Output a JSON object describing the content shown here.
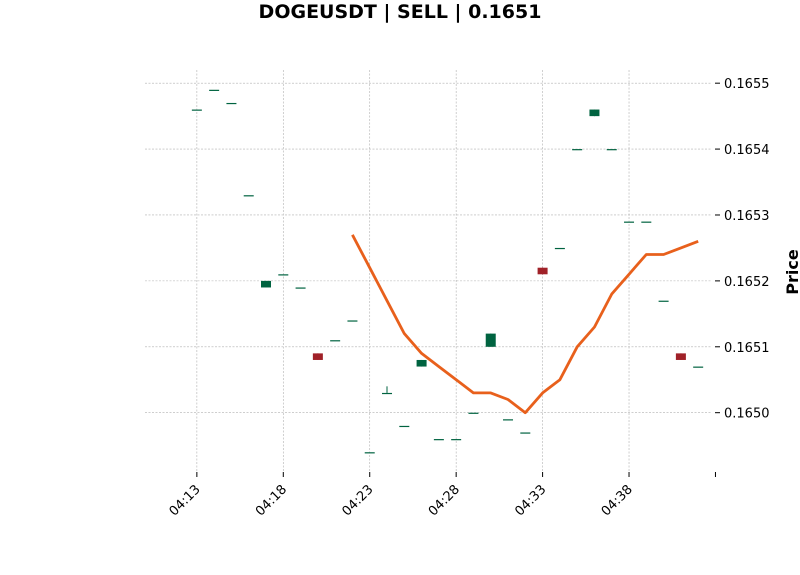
{
  "chart_data": {
    "type": "candlestick",
    "title": "DOGEUSDT | SELL | 0.1651",
    "ylabel": "Price",
    "xlabel": "",
    "ylim": [
      0.16491,
      0.16552
    ],
    "xlim_minutes": [
      10,
      42.8
    ],
    "y_ticks": [
      0.165,
      0.1651,
      0.1652,
      0.1653,
      0.1654,
      0.1655
    ],
    "y_tick_labels": [
      "0.1650",
      "0.1651",
      "0.1652",
      "0.1653",
      "0.1654",
      "0.1655"
    ],
    "x_ticks_minutes": [
      13,
      18,
      23,
      28,
      33,
      38,
      43
    ],
    "x_tick_labels": [
      "04:13",
      "04:18",
      "04:23",
      "04:28",
      "04:33",
      "04:38",
      ""
    ],
    "grid": true,
    "colors": {
      "up": "#006340",
      "down": "#a02128",
      "line": "#e8601c"
    },
    "candles": [
      {
        "t": "04:13",
        "minute": 13,
        "open": 0.16546,
        "high": 0.16546,
        "low": 0.16546,
        "close": 0.16546
      },
      {
        "t": "04:14",
        "minute": 14,
        "open": 0.16549,
        "high": 0.16549,
        "low": 0.16549,
        "close": 0.16549
      },
      {
        "t": "04:15",
        "minute": 15,
        "open": 0.16547,
        "high": 0.16547,
        "low": 0.16547,
        "close": 0.16547
      },
      {
        "t": "04:16",
        "minute": 16,
        "open": 0.16533,
        "high": 0.16533,
        "low": 0.16533,
        "close": 0.16533
      },
      {
        "t": "04:17",
        "minute": 17,
        "open": 0.16519,
        "high": 0.1652,
        "low": 0.16519,
        "close": 0.1652
      },
      {
        "t": "04:18",
        "minute": 18,
        "open": 0.16521,
        "high": 0.16521,
        "low": 0.16521,
        "close": 0.16521
      },
      {
        "t": "04:19",
        "minute": 19,
        "open": 0.16519,
        "high": 0.16519,
        "low": 0.16519,
        "close": 0.16519
      },
      {
        "t": "04:20",
        "minute": 20,
        "open": 0.16509,
        "high": 0.16509,
        "low": 0.16508,
        "close": 0.16508
      },
      {
        "t": "04:21",
        "minute": 21,
        "open": 0.16511,
        "high": 0.16511,
        "low": 0.16511,
        "close": 0.16511
      },
      {
        "t": "04:22",
        "minute": 22,
        "open": 0.16514,
        "high": 0.16514,
        "low": 0.16514,
        "close": 0.16514
      },
      {
        "t": "04:23",
        "minute": 23,
        "open": 0.16494,
        "high": 0.16494,
        "low": 0.16494,
        "close": 0.16494
      },
      {
        "t": "04:24",
        "minute": 24,
        "open": 0.16503,
        "high": 0.16504,
        "low": 0.16503,
        "close": 0.16503
      },
      {
        "t": "04:25",
        "minute": 25,
        "open": 0.16498,
        "high": 0.16498,
        "low": 0.16498,
        "close": 0.16498
      },
      {
        "t": "04:26",
        "minute": 26,
        "open": 0.16507,
        "high": 0.16508,
        "low": 0.16507,
        "close": 0.16508
      },
      {
        "t": "04:27",
        "minute": 27,
        "open": 0.16496,
        "high": 0.16496,
        "low": 0.16496,
        "close": 0.16496
      },
      {
        "t": "04:28",
        "minute": 28,
        "open": 0.16496,
        "high": 0.16496,
        "low": 0.16496,
        "close": 0.16496
      },
      {
        "t": "04:29",
        "minute": 29,
        "open": 0.165,
        "high": 0.165,
        "low": 0.165,
        "close": 0.165
      },
      {
        "t": "04:30",
        "minute": 30,
        "open": 0.1651,
        "high": 0.16512,
        "low": 0.1651,
        "close": 0.16512
      },
      {
        "t": "04:31",
        "minute": 31,
        "open": 0.16499,
        "high": 0.16499,
        "low": 0.16499,
        "close": 0.16499
      },
      {
        "t": "04:32",
        "minute": 32,
        "open": 0.16497,
        "high": 0.16497,
        "low": 0.16497,
        "close": 0.16497
      },
      {
        "t": "04:33",
        "minute": 33,
        "open": 0.16522,
        "high": 0.16522,
        "low": 0.16521,
        "close": 0.16521
      },
      {
        "t": "04:34",
        "minute": 34,
        "open": 0.16525,
        "high": 0.16525,
        "low": 0.16525,
        "close": 0.16525
      },
      {
        "t": "04:35",
        "minute": 35,
        "open": 0.1654,
        "high": 0.1654,
        "low": 0.1654,
        "close": 0.1654
      },
      {
        "t": "04:36",
        "minute": 36,
        "open": 0.16545,
        "high": 0.16546,
        "low": 0.16545,
        "close": 0.16546
      },
      {
        "t": "04:37",
        "minute": 37,
        "open": 0.1654,
        "high": 0.1654,
        "low": 0.1654,
        "close": 0.1654
      },
      {
        "t": "04:38",
        "minute": 38,
        "open": 0.16529,
        "high": 0.16529,
        "low": 0.16529,
        "close": 0.16529
      },
      {
        "t": "04:39",
        "minute": 39,
        "open": 0.16529,
        "high": 0.16529,
        "low": 0.16529,
        "close": 0.16529
      },
      {
        "t": "04:40",
        "minute": 40,
        "open": 0.16517,
        "high": 0.16517,
        "low": 0.16517,
        "close": 0.16517
      },
      {
        "t": "04:41",
        "minute": 41,
        "open": 0.16509,
        "high": 0.16509,
        "low": 0.16508,
        "close": 0.16508
      },
      {
        "t": "04:42",
        "minute": 42,
        "open": 0.16507,
        "high": 0.16507,
        "low": 0.16507,
        "close": 0.16507
      }
    ],
    "moving_average": {
      "minutes": [
        22,
        23,
        24,
        25,
        26,
        27,
        28,
        29,
        30,
        31,
        32,
        33,
        34,
        35,
        36,
        37,
        38,
        39,
        40,
        41,
        42
      ],
      "values": [
        0.16527,
        0.16522,
        0.16517,
        0.16512,
        0.16509,
        0.16507,
        0.16505,
        0.16503,
        0.16503,
        0.16502,
        0.165,
        0.16503,
        0.16505,
        0.1651,
        0.16513,
        0.16518,
        0.16521,
        0.16524,
        0.16524,
        0.16525,
        0.16526
      ]
    }
  }
}
